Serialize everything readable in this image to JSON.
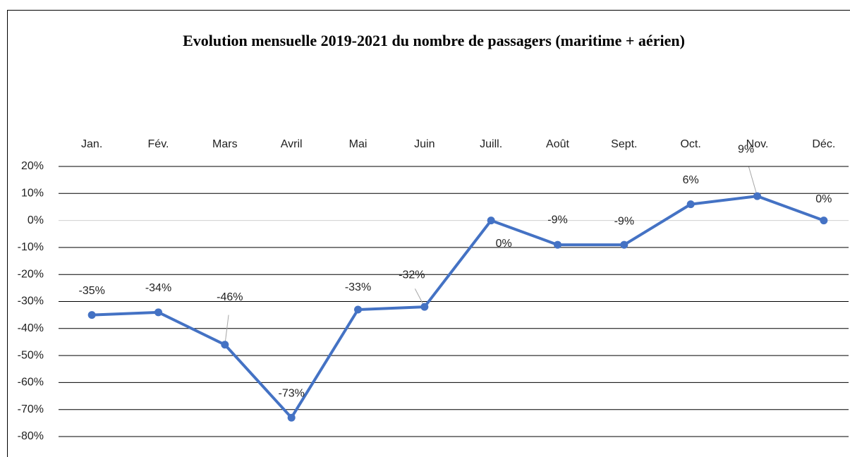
{
  "chart_data": {
    "type": "line",
    "title": "Evolution mensuelle 2019-2021 du nombre de passagers (maritime + aérien)",
    "categories": [
      "Jan.",
      "Fév.",
      "Mars",
      "Avril",
      "Mai",
      "Juin",
      "Juill.",
      "Août",
      "Sept.",
      "Oct.",
      "Nov.",
      "Déc."
    ],
    "series": [
      {
        "name": "Evolution",
        "color": "#4472c4",
        "values": [
          -35,
          -34,
          -46,
          -73,
          -33,
          -32,
          0,
          -9,
          -9,
          6,
          9,
          0
        ],
        "value_labels": [
          "-35%",
          "-34%",
          "-46%",
          "-73%",
          "-33%",
          "-32%",
          "0%",
          "-9%",
          "-9%",
          "6%",
          "9%",
          "0%"
        ]
      }
    ],
    "ylim": [
      -80,
      20
    ],
    "yticks": [
      {
        "value": 20,
        "label": "20%"
      },
      {
        "value": 10,
        "label": "10%"
      },
      {
        "value": 0,
        "label": "0%"
      },
      {
        "value": -10,
        "label": "-10%"
      },
      {
        "value": -20,
        "label": "-20%"
      },
      {
        "value": -30,
        "label": "-30%"
      },
      {
        "value": -40,
        "label": "-40%"
      },
      {
        "value": -50,
        "label": "-50%"
      },
      {
        "value": -60,
        "label": "-60%"
      },
      {
        "value": -70,
        "label": "-70%"
      },
      {
        "value": -80,
        "label": "-80%"
      }
    ],
    "grid": true
  }
}
